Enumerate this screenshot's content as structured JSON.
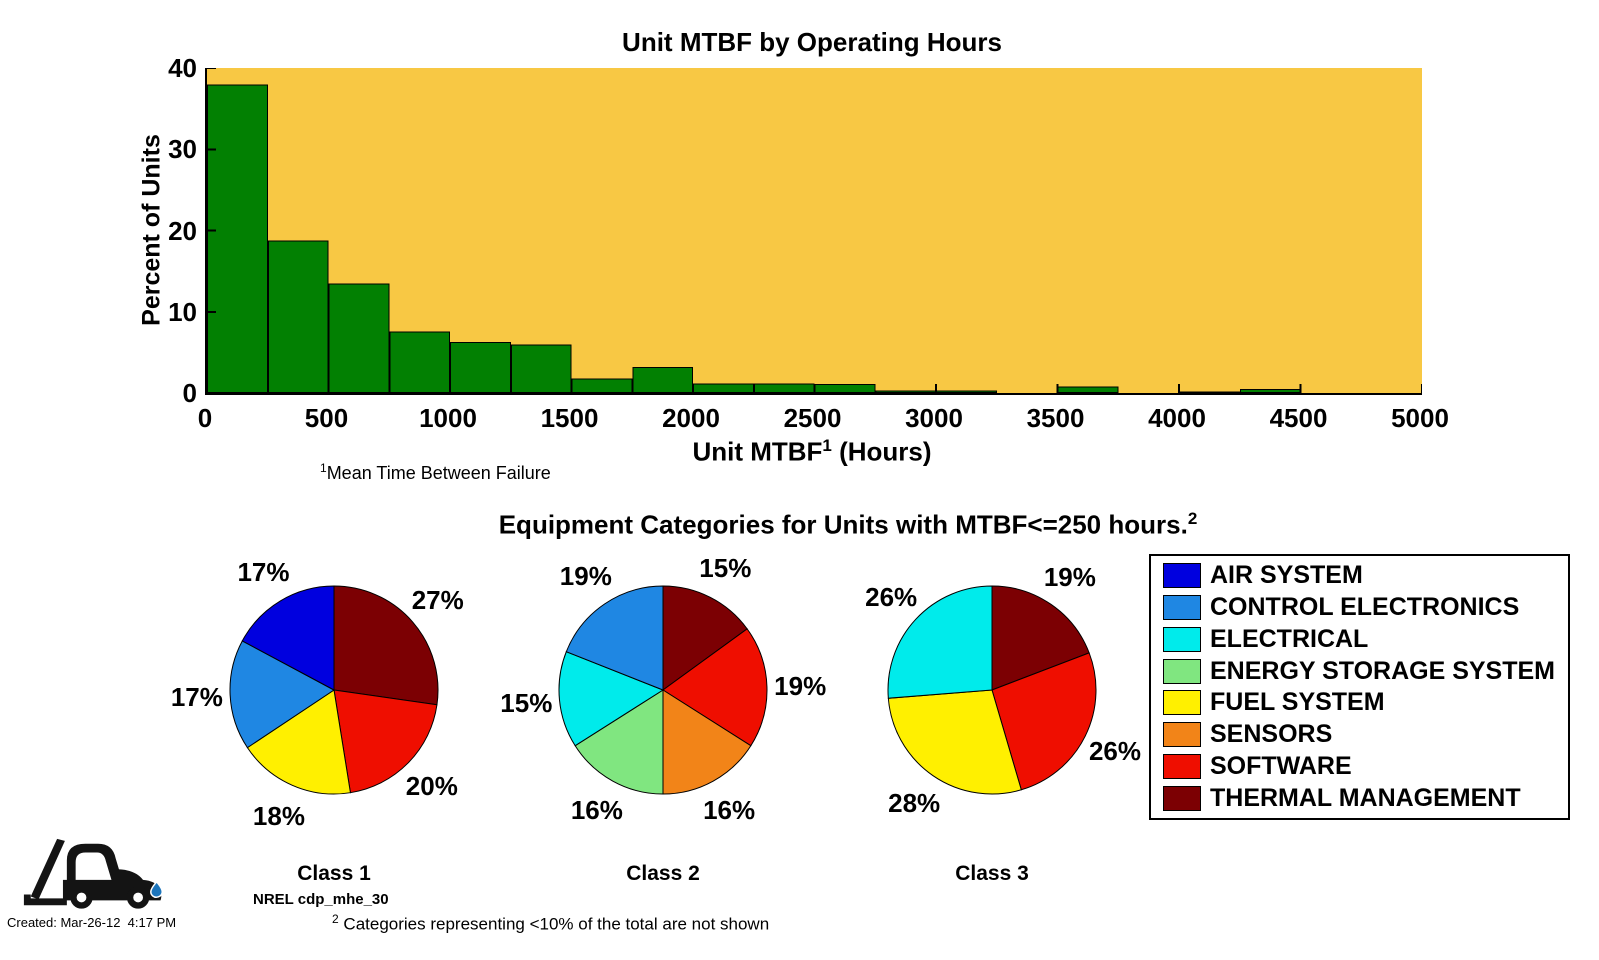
{
  "histogram": {
    "title": "Unit MTBF by Operating Hours",
    "ylabel": "Percent of Units",
    "xlabel": {
      "text": "Unit MTBF",
      "sup": "1",
      "suffix": " (Hours)"
    },
    "footnote": {
      "sup": "1",
      "text": "Mean Time Between Failure"
    }
  },
  "pie_section": {
    "title": "Equipment Categories for Units with MTBF<=250 hours.",
    "title_sup": "2",
    "footnote": {
      "sup": "2",
      "text": " Categories representing <10% of the total are not shown"
    }
  },
  "chart_data": [
    {
      "type": "bar",
      "title": "Unit MTBF by Operating Hours",
      "xlabel": "Unit MTBF (Hours)",
      "ylabel": "Percent of Units",
      "bin_start": 0,
      "bin_width": 250,
      "values": [
        38,
        18.8,
        13.5,
        7.6,
        6.3,
        6.0,
        1.8,
        3.2,
        1.2,
        1.2,
        1.1,
        0.3,
        0.3,
        0,
        0.8,
        0,
        0.2,
        0.5,
        0,
        0
      ],
      "xlim": [
        0,
        5000
      ],
      "ylim": [
        0,
        40
      ],
      "xticks": [
        0,
        500,
        1000,
        1500,
        2000,
        2500,
        3000,
        3500,
        4000,
        4500,
        5000
      ],
      "yticks": [
        0,
        10,
        20,
        30,
        40
      ],
      "grid": false
    },
    {
      "type": "pie",
      "title": "Class 1",
      "labels": [
        "THERMAL MANAGEMENT",
        "SOFTWARE",
        "FUEL SYSTEM",
        "CONTROL ELECTRONICS",
        "AIR SYSTEM"
      ],
      "values": [
        27,
        20,
        18,
        17,
        17
      ],
      "display": [
        "27%",
        "20%",
        "18%",
        "17%",
        "17%"
      ]
    },
    {
      "type": "pie",
      "title": "Class 2",
      "labels": [
        "THERMAL MANAGEMENT",
        "SOFTWARE",
        "SENSORS",
        "ENERGY STORAGE SYSTEM",
        "ELECTRICAL",
        "CONTROL ELECTRONICS"
      ],
      "values": [
        15,
        19,
        16,
        16,
        15,
        19
      ],
      "display": [
        "15%",
        "19%",
        "16%",
        "16%",
        "15%",
        "19%"
      ]
    },
    {
      "type": "pie",
      "title": "Class 3",
      "labels": [
        "THERMAL MANAGEMENT",
        "SOFTWARE",
        "FUEL SYSTEM",
        "ELECTRICAL"
      ],
      "values": [
        19,
        26,
        28,
        26
      ],
      "display": [
        "19%",
        "26%",
        "28%",
        "26%"
      ]
    }
  ],
  "legend": {
    "items": [
      "AIR SYSTEM",
      "CONTROL ELECTRONICS",
      "ELECTRICAL",
      "ENERGY STORAGE SYSTEM",
      "FUEL SYSTEM",
      "SENSORS",
      "SOFTWARE",
      "THERMAL MANAGEMENT"
    ]
  },
  "colors": {
    "plot_background": "#F8C844",
    "bar_fill": "#028002",
    "bar_edge": "#000000",
    "categories": {
      "AIR SYSTEM": "#0000DF",
      "CONTROL ELECTRONICS": "#1F87E3",
      "ELECTRICAL": "#00EBEB",
      "ENERGY STORAGE SYSTEM": "#80E680",
      "FUEL SYSTEM": "#FFF000",
      "SENSORS": "#F28418",
      "SOFTWARE": "#EF0E00",
      "THERMAL MANAGEMENT": "#7C0003"
    },
    "droplet": "#1C75BC"
  },
  "footer": {
    "logo": "forklift-water-drop-logo",
    "label": "NREL cdp_mhe_30",
    "created": "Created: Mar-26-12  4:17 PM"
  }
}
